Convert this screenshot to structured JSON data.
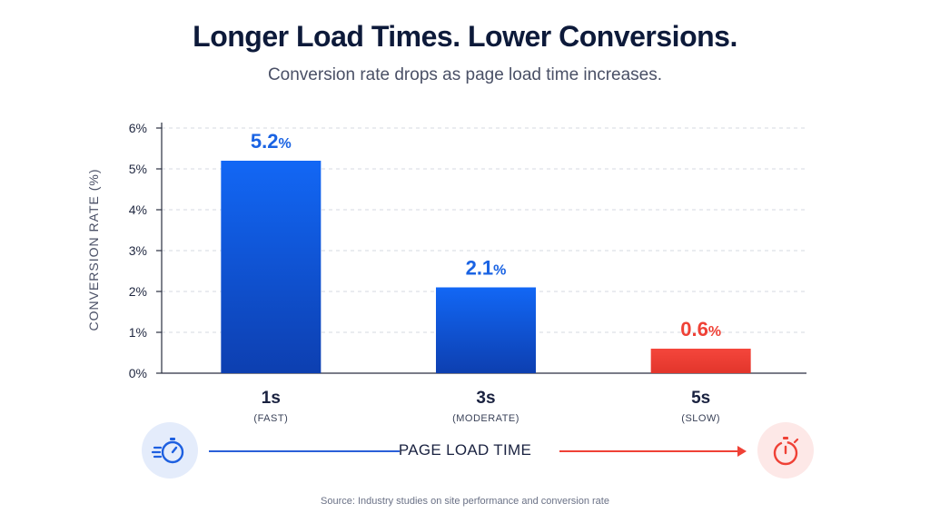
{
  "header": {
    "title": "Longer Load Times. Lower Conversions.",
    "subtitle": "Conversion rate drops as page load time increases."
  },
  "chart_data": {
    "type": "bar",
    "title": "Longer Load Times. Lower Conversions.",
    "subtitle": "Conversion rate drops as page load time increases.",
    "ylabel": "CONVERSION RATE (%)",
    "xlabel": "PAGE LOAD TIME",
    "ylim": [
      0,
      6
    ],
    "yticks": [
      "0%",
      "1%",
      "2%",
      "3%",
      "4%",
      "5%",
      "6%"
    ],
    "categories": [
      "1s",
      "3s",
      "5s"
    ],
    "category_notes": [
      "(FAST)",
      "(MODERATE)",
      "(SLOW)"
    ],
    "values": [
      5.2,
      2.1,
      0.6
    ],
    "value_labels": [
      "5.2",
      "2.1",
      "0.6"
    ],
    "value_suffix": "%",
    "grid": true,
    "colors": {
      "fast": "#1565f0",
      "moderate": "#1565f0",
      "slow": "#f0443a",
      "label_blue": "#1a63e3",
      "label_red": "#ef4136"
    }
  },
  "footer": {
    "fast_icon": "stopwatch-fast-icon",
    "slow_icon": "stopwatch-slow-icon",
    "source": "Source: Industry studies on site performance and conversion rate"
  }
}
